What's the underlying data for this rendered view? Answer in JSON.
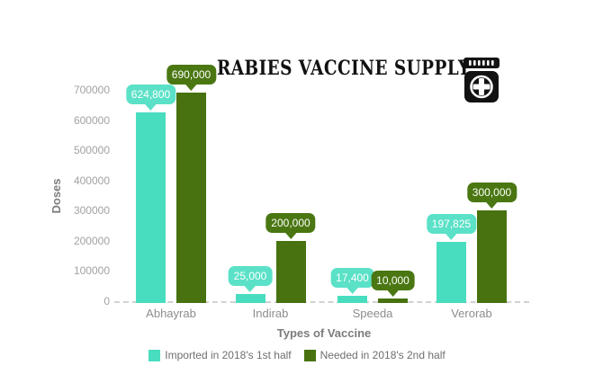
{
  "title": "RABIES VACCINE SUPPLY",
  "icon": {
    "name": "medicine-jar-icon",
    "color": "#121212"
  },
  "chart_data": {
    "type": "bar",
    "title": "RABIES VACCINE SUPPLY",
    "categories": [
      "Abhayrab",
      "Indirab",
      "Speeda",
      "Verorab"
    ],
    "series": [
      {
        "name": "Imported in 2018's 1st half",
        "color": "#49DDC0",
        "label_bg": "#5BE1C7",
        "values": [
          624800,
          25000,
          17400,
          197825
        ],
        "labels": [
          "624,800",
          "25,000",
          "17,400",
          "197,825"
        ]
      },
      {
        "name": "Needed in 2018's 2nd half",
        "color": "#47720F",
        "label_bg": "#4A7712",
        "values": [
          690000,
          200000,
          10000,
          300000
        ],
        "labels": [
          "690,000",
          "200,000",
          "10,000",
          "300,000"
        ]
      }
    ],
    "xlabel": "Types of Vaccine",
    "ylabel": "Doses",
    "ylim": [
      0,
      700000
    ],
    "yticks": [
      0,
      100000,
      200000,
      300000,
      400000,
      500000,
      600000,
      700000
    ],
    "ytick_labels": [
      "0",
      "100000",
      "200000",
      "300000",
      "400000",
      "500000",
      "600000",
      "700000"
    ],
    "grid": false,
    "zero_line_style": "dashed",
    "data_label_style": "speech-bubble",
    "legend_position": "bottom"
  }
}
